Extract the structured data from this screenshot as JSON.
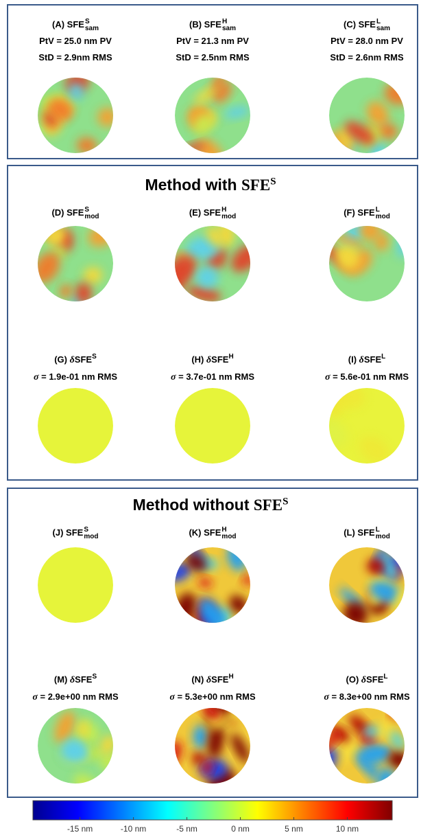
{
  "groups": [
    {
      "rows": [
        {
          "items": [
            {
              "label": "(A) SFE",
              "sup": "S",
              "sub": "sam",
              "lines": [
                "PtV = 25.0 nm PV",
                "StD = 2.9nm RMS"
              ]
            },
            {
              "label": "(B) SFE",
              "sup": "H",
              "sub": "sam",
              "lines": [
                "PtV = 21.3 nm PV",
                "StD = 2.5nm RMS"
              ]
            },
            {
              "label": "(C) SFE",
              "sup": "L",
              "sub": "sam",
              "lines": [
                "PtV = 28.0 nm PV",
                "StD = 2.6nm RMS"
              ]
            }
          ]
        }
      ]
    },
    {
      "title": {
        "text": "Method with",
        "formula": "SFE",
        "sup": "S"
      },
      "rows": [
        {
          "items": [
            {
              "label": "(D) SFE",
              "sup": "S",
              "sub": "mod"
            },
            {
              "label": "(E) SFE",
              "sup": "H",
              "sub": "mod"
            },
            {
              "label": "(F) SFE",
              "sup": "L",
              "sub": "mod"
            }
          ]
        },
        {
          "items": [
            {
              "label": "(G)",
              "delta": "δ",
              "name": "SFE",
              "sup": "S",
              "sigma": "σ",
              "rms": "= 1.9e-01 nm RMS"
            },
            {
              "label": "(H)",
              "delta": "δ",
              "name": "SFE",
              "sup": "H",
              "sigma": "σ",
              "rms": "= 3.7e-01 nm RMS"
            },
            {
              "label": "(I)",
              "delta": "δ",
              "name": "SFE",
              "sup": "L",
              "sigma": "σ",
              "rms": "= 5.6e-01 nm RMS"
            }
          ]
        }
      ]
    },
    {
      "title": {
        "text": "Method without",
        "formula": "SFE",
        "sup": "S"
      },
      "rows": [
        {
          "items": [
            {
              "label": "(J) SFE",
              "sup": "S",
              "sub": "mod"
            },
            {
              "label": "(K) SFE",
              "sup": "H",
              "sub": "mod"
            },
            {
              "label": "(L) SFE",
              "sup": "L",
              "sub": "mod"
            }
          ]
        },
        {
          "items": [
            {
              "label": "(M)",
              "delta": "δ",
              "name": "SFE",
              "sup": "S",
              "sigma": "σ",
              "rms": "= 2.9e+00 nm RMS"
            },
            {
              "label": "(N)",
              "delta": "δ",
              "name": "SFE",
              "sup": "H",
              "sigma": "σ",
              "rms": "= 5.3e+00 nm RMS"
            },
            {
              "label": "(O)",
              "delta": "δ",
              "name": "SFE",
              "sup": "L",
              "sigma": "σ",
              "rms": "= 8.3e+00 nm RMS"
            }
          ]
        }
      ]
    }
  ],
  "chart_data": {
    "type": "colorbar",
    "xlim": [
      -19.4,
      14.2
    ],
    "xticks": [
      {
        "value": -15,
        "label": "-15 nm"
      },
      {
        "value": -10,
        "label": "-10 nm"
      },
      {
        "value": -5,
        "label": "-5 nm"
      },
      {
        "value": 0,
        "label": "0 nm"
      },
      {
        "value": 5,
        "label": "5 nm"
      },
      {
        "value": 10,
        "label": "10 nm"
      }
    ]
  }
}
